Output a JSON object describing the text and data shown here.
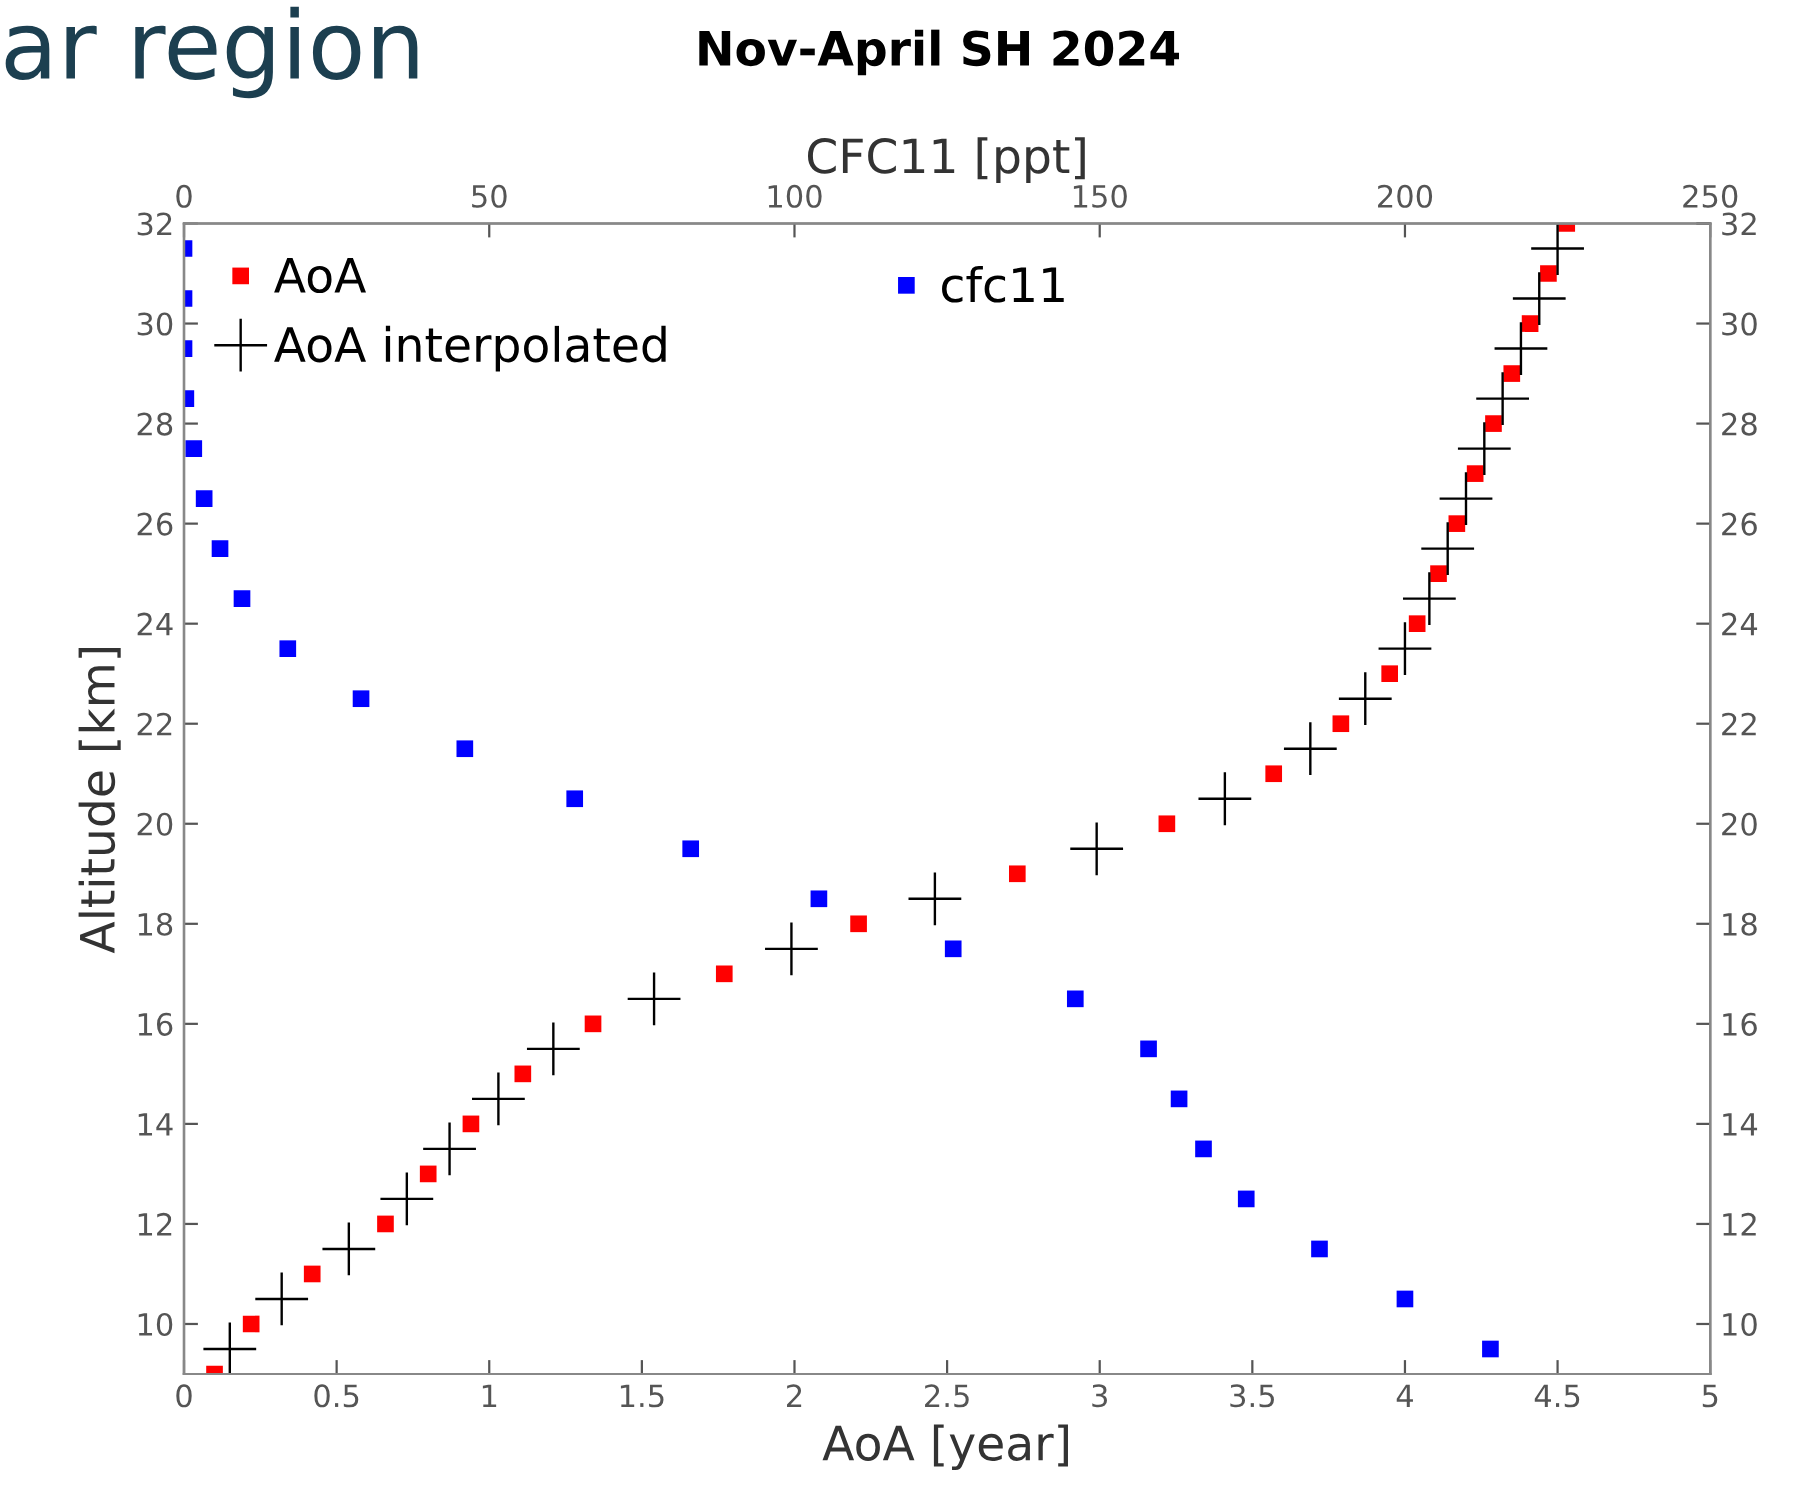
{
  "chart_data": {
    "type": "scatter",
    "title": "Nov-April SH 2024",
    "xlabel": "AoA [year]",
    "x2label": "CFC11 [ppt]",
    "ylabel": "Altitude [km]",
    "annotations": [
      "ar region"
    ],
    "xlim": [
      0,
      5
    ],
    "xticks": [
      0,
      0.5,
      1,
      1.5,
      2,
      2.5,
      3,
      3.5,
      4,
      4.5,
      5
    ],
    "x2lim": [
      0,
      250
    ],
    "x2ticks": [
      0,
      50,
      100,
      150,
      200,
      250
    ],
    "ylim": [
      9,
      32
    ],
    "yticks": [
      10,
      12,
      14,
      16,
      18,
      20,
      22,
      24,
      26,
      28,
      30,
      32
    ],
    "y2lim": [
      9,
      32
    ],
    "y2ticks": [
      10,
      12,
      14,
      16,
      18,
      20,
      22,
      24,
      26,
      28,
      30,
      32
    ],
    "grid": false,
    "legend": "top left",
    "series": [
      {
        "name": "AoA",
        "color": "#ff0000",
        "marker": "square",
        "x": [
          0.1,
          0.22,
          0.42,
          0.66,
          0.8,
          0.94,
          1.11,
          1.34,
          1.77,
          2.21,
          2.73,
          3.22,
          3.57,
          3.79,
          3.95,
          4.04,
          4.11,
          4.17,
          4.23,
          4.29,
          4.35,
          4.41,
          4.47,
          4.53
        ],
        "values": [
          9,
          10,
          11,
          12,
          13,
          14,
          15,
          16,
          17,
          18,
          19,
          20,
          21,
          22,
          23,
          24,
          25,
          26,
          27,
          28,
          29,
          30,
          31,
          32
        ]
      },
      {
        "name": "AoA interpolated",
        "color": "#000000",
        "marker": "cross",
        "x": [
          0.15,
          0.32,
          0.54,
          0.73,
          0.87,
          1.03,
          1.21,
          1.54,
          1.99,
          2.46,
          2.99,
          3.41,
          3.69,
          3.87,
          4.0,
          4.08,
          4.14,
          4.2,
          4.26,
          4.32,
          4.38,
          4.44,
          4.5
        ],
        "values": [
          9.5,
          10.5,
          11.5,
          12.5,
          13.5,
          14.5,
          15.5,
          16.5,
          17.5,
          18.5,
          19.5,
          20.5,
          21.5,
          22.5,
          23.5,
          24.5,
          25.5,
          26.5,
          27.5,
          28.5,
          29.5,
          30.5,
          31.5
        ]
      },
      {
        "name": "cfc11",
        "color": "#0000ff",
        "marker": "square",
        "axis": "x2",
        "x": [
          214,
          200,
          186,
          174,
          167,
          163,
          158,
          146,
          126,
          104,
          83,
          64,
          46,
          29,
          17,
          9.5,
          5.9,
          3.3,
          1.6,
          0.3,
          0,
          0,
          0
        ],
        "values": [
          9.5,
          10.5,
          11.5,
          12.5,
          13.5,
          14.5,
          15.5,
          16.5,
          17.5,
          18.5,
          19.5,
          20.5,
          21.5,
          22.5,
          23.5,
          24.5,
          25.5,
          26.5,
          27.5,
          28.5,
          29.5,
          30.5,
          31.5
        ]
      }
    ]
  }
}
